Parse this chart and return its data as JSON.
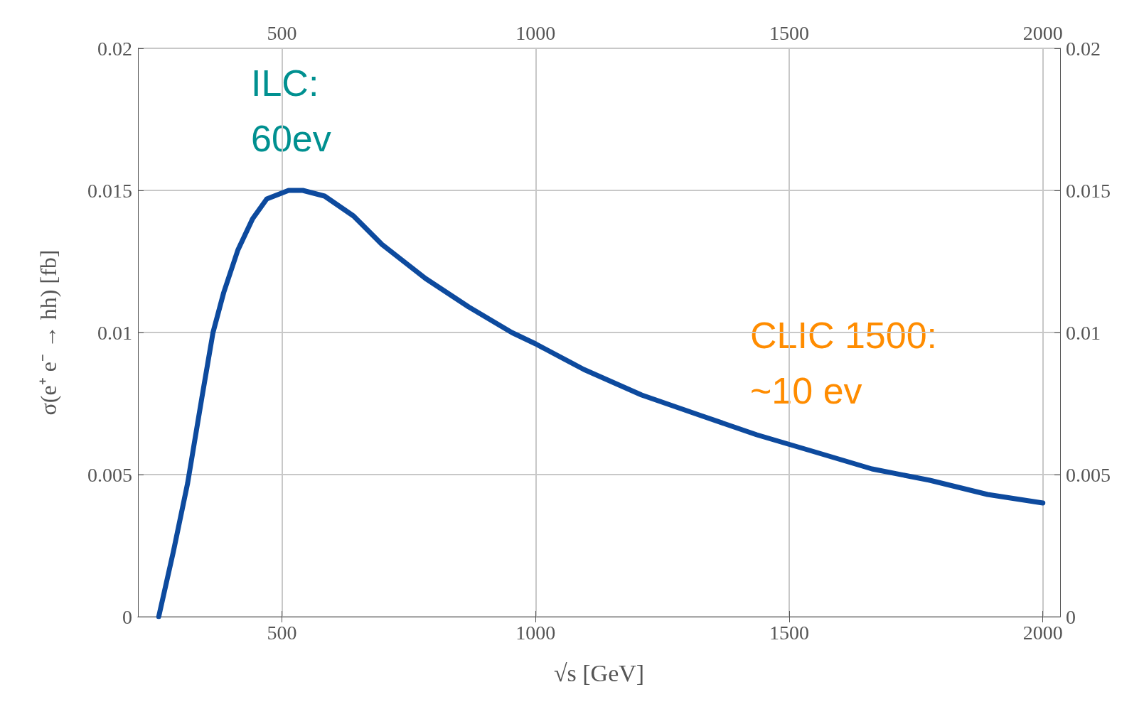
{
  "chart_data": {
    "type": "line",
    "xlabel": "√s [GeV]",
    "ylabel": "σ(e⁺ e⁻ → hh) [fb]",
    "annotations": [
      "ILC:\n60ev",
      "CLIC 1500:\n~10 ev"
    ],
    "x": [
      257,
      286,
      314,
      342,
      364,
      385,
      413,
      442,
      470,
      513,
      541,
      584,
      641,
      697,
      783,
      868,
      953,
      1000,
      1095,
      1209,
      1322,
      1436,
      1550,
      1663,
      1777,
      1891,
      2000
    ],
    "series": [
      {
        "color": "#0d4a9e",
        "values": [
          0,
          0.0023,
          0.0047,
          0.0077,
          0.01,
          0.0114,
          0.0129,
          0.014,
          0.0147,
          0.015,
          0.015,
          0.0148,
          0.0141,
          0.0131,
          0.0119,
          0.0109,
          0.01,
          0.0096,
          0.0087,
          0.0078,
          0.0071,
          0.0064,
          0.0058,
          0.0052,
          0.0048,
          0.0043,
          0.004
        ]
      }
    ],
    "xlim": [
      216,
      2034
    ],
    "xticks": [
      500,
      1000,
      1500,
      2000
    ],
    "x2lim": [
      216,
      2034
    ],
    "x2ticks": [
      500,
      1000,
      1500,
      2000
    ],
    "ylim": [
      0,
      0.02
    ],
    "yticks": [
      0,
      0.005,
      0.01,
      0.015,
      0.02
    ],
    "y2lim": [
      0,
      0.02
    ],
    "y2ticks": [
      0,
      0.005,
      0.01,
      0.015,
      0.02
    ],
    "grid": true,
    "marker": "none",
    "line_style": "solid"
  }
}
